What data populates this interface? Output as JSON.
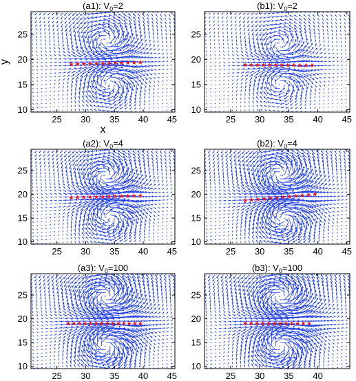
{
  "colors": {
    "arrows": "#1f3fe8",
    "stars": "#e8141c",
    "frame": "#000000"
  },
  "chart_data": [
    {
      "type": "quiver",
      "title": "(a1): V",
      "title_sub": "0",
      "title_tail": "=2",
      "xlabel": "x",
      "ylabel": "y",
      "xlim": [
        20.5,
        45.5
      ],
      "ylim": [
        9.5,
        29.5
      ],
      "xticks": [
        "25",
        "30",
        "35",
        "40",
        "45"
      ],
      "yticks": [
        "10",
        "15",
        "20",
        "25"
      ],
      "stars": {
        "x0": 27.5,
        "x1": 39.5,
        "y0": 19.0,
        "y1": 19.4,
        "count": 12
      },
      "vortex_top": [
        33.5,
        23.5
      ],
      "vortex_bottom": [
        34.0,
        15.5
      ],
      "strength": 1.0
    },
    {
      "type": "quiver",
      "title": "(b1): V",
      "title_sub": "0",
      "title_tail": "=2",
      "xlabel": "",
      "ylabel": "",
      "xlim": [
        20.5,
        45.5
      ],
      "ylim": [
        9.5,
        29.5
      ],
      "xticks": [
        "25",
        "30",
        "35",
        "40",
        "45"
      ],
      "yticks": [
        "10",
        "15",
        "20",
        "25"
      ],
      "stars": {
        "x0": 27.5,
        "x1": 39.0,
        "y0": 18.9,
        "y1": 18.8,
        "count": 12
      },
      "vortex_top": [
        33.5,
        22.5
      ],
      "vortex_bottom": [
        33.5,
        15.5
      ],
      "strength": 0.8
    },
    {
      "type": "quiver",
      "title": "(a2): V",
      "title_sub": "0",
      "title_tail": "=4",
      "xlabel": "",
      "ylabel": "",
      "xlim": [
        20.5,
        45.5
      ],
      "ylim": [
        9.5,
        29.5
      ],
      "xticks": [
        "25",
        "30",
        "35",
        "40",
        "45"
      ],
      "yticks": [
        "10",
        "15",
        "20",
        "25"
      ],
      "stars": {
        "x0": 27.5,
        "x1": 39.5,
        "y0": 19.3,
        "y1": 19.7,
        "count": 12
      },
      "vortex_top": [
        33.5,
        23.5
      ],
      "vortex_bottom": [
        34.0,
        15.5
      ],
      "strength": 1.1
    },
    {
      "type": "quiver",
      "title": "(b2): V",
      "title_sub": "0",
      "title_tail": "=4",
      "xlabel": "",
      "ylabel": "",
      "xlim": [
        20.5,
        45.5
      ],
      "ylim": [
        9.5,
        29.5
      ],
      "xticks": [
        "25",
        "30",
        "35",
        "40",
        "45"
      ],
      "yticks": [
        "10",
        "15",
        "20",
        "25"
      ],
      "stars": {
        "x0": 27.5,
        "x1": 39.5,
        "y0": 18.7,
        "y1": 20.0,
        "count": 12
      },
      "vortex_top": [
        33.5,
        24.0
      ],
      "vortex_bottom": [
        34.0,
        15.0
      ],
      "strength": 1.2
    },
    {
      "type": "quiver",
      "title": "(a3): V",
      "title_sub": "0",
      "title_tail": "=100",
      "xlabel": "",
      "ylabel": "",
      "xlim": [
        20.5,
        45.5
      ],
      "ylim": [
        9.5,
        29.5
      ],
      "xticks": [
        "25",
        "30",
        "35",
        "40",
        "45"
      ],
      "yticks": [
        "10",
        "15",
        "20",
        "25"
      ],
      "stars": {
        "x0": 27.0,
        "x1": 39.5,
        "y0": 19.0,
        "y1": 19.0,
        "count": 14
      },
      "vortex_top": [
        33.5,
        24.5
      ],
      "vortex_bottom": [
        33.5,
        14.5
      ],
      "strength": 1.3
    },
    {
      "type": "quiver",
      "title": "(b3): V",
      "title_sub": "0",
      "title_tail": "=100",
      "xlabel": "",
      "ylabel": "",
      "xlim": [
        20.5,
        45.5
      ],
      "ylim": [
        9.5,
        29.5
      ],
      "xticks": [
        "25",
        "30",
        "35",
        "40"
      ],
      "yticks": [
        "10",
        "15",
        "20",
        "25"
      ],
      "stars": {
        "x0": 27.5,
        "x1": 38.5,
        "y0": 19.0,
        "y1": 19.0,
        "count": 12
      },
      "vortex_top": [
        33.5,
        24.5
      ],
      "vortex_bottom": [
        33.5,
        14.5
      ],
      "strength": 1.3
    }
  ]
}
